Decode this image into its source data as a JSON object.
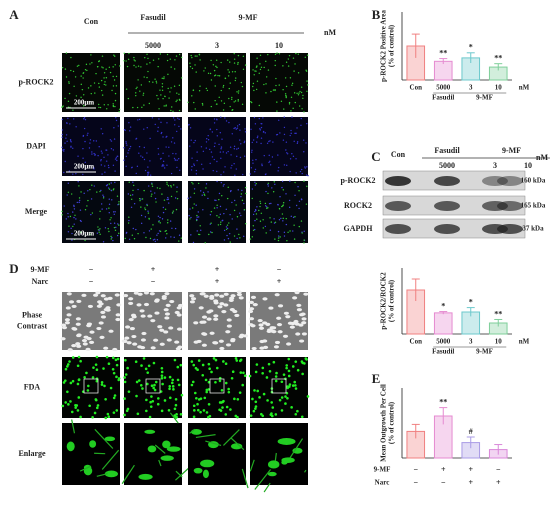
{
  "panel_labels": [
    "A",
    "B",
    "C",
    "D",
    "E"
  ],
  "panel_a": {
    "header": {
      "control": "Con",
      "groups": [
        "Fasudil",
        "9-MF"
      ],
      "doses": [
        "5000",
        "3",
        "10"
      ],
      "unit": "nM"
    },
    "rows": [
      "p-ROCK2",
      "DAPI",
      "Merge"
    ],
    "scale_bar": "200μm"
  },
  "blot": {
    "header": {
      "control": "Con",
      "groups": [
        "Fasudil",
        "9-MF"
      ],
      "doses": [
        "5000",
        "3",
        "10"
      ],
      "unit": "nM"
    },
    "rows": [
      {
        "name": "p-ROCK2",
        "size": "160 kDa"
      },
      {
        "name": "ROCK2",
        "size": "165 kDa"
      },
      {
        "name": "GAPDH",
        "size": "37 kDa"
      }
    ]
  },
  "panel_d": {
    "conditions": [
      {
        "name": "9-MF",
        "values": [
          "−",
          "+",
          "+",
          "−"
        ]
      },
      {
        "name": "Narc",
        "values": [
          "−",
          "−",
          "+",
          "+"
        ]
      }
    ],
    "rows": [
      [
        "Phase",
        "Contrast"
      ],
      [
        "FDA"
      ],
      [
        "Enlarge"
      ]
    ]
  },
  "chart_data": [
    {
      "type": "bar",
      "ylabel": [
        "p-ROCK2 Positive Area",
        "(% of control)"
      ],
      "categories": [
        "Con",
        "5000",
        "3",
        "10"
      ],
      "groups": [
        "Fasudil",
        "9-MF"
      ],
      "unit": "nM",
      "values": [
        100,
        55,
        65,
        38
      ],
      "errors": [
        35,
        8,
        15,
        10
      ],
      "annotations": [
        null,
        "**",
        "*",
        "**"
      ],
      "colors": [
        "#f08080",
        "#e58ad0",
        "#6cc8cc",
        "#7fcf9a"
      ],
      "ylim": [
        0,
        200
      ]
    },
    {
      "type": "bar",
      "ylabel": [
        "p-ROCK2/ROCK2",
        "(% of control)"
      ],
      "categories": [
        "Con",
        "5000",
        "3",
        "10"
      ],
      "groups": [
        "Fasudil",
        "9-MF"
      ],
      "unit": "nM",
      "values": [
        100,
        48,
        50,
        25
      ],
      "errors": [
        25,
        3,
        10,
        8
      ],
      "annotations": [
        null,
        "*",
        "*",
        "**"
      ],
      "colors": [
        "#f08080",
        "#e58ad0",
        "#6cc8cc",
        "#7fcf9a"
      ],
      "ylim": [
        0,
        150
      ]
    },
    {
      "type": "bar",
      "ylabel": [
        "Mean Outgrowth Per Cell",
        "(% of control)"
      ],
      "categories": [
        null,
        null,
        null,
        null
      ],
      "conditions": [
        {
          "name": "9-MF",
          "values": [
            "−",
            "+",
            "+",
            "−"
          ]
        },
        {
          "name": "Narc",
          "values": [
            "−",
            "−",
            "+",
            "+"
          ]
        }
      ],
      "values": [
        95,
        150,
        55,
        30
      ],
      "errors": [
        25,
        30,
        20,
        18
      ],
      "annotations": [
        null,
        "**",
        "#",
        null
      ],
      "colors": [
        "#f08080",
        "#e58ad0",
        "#a99be6",
        "#d987d9"
      ],
      "ylim": [
        0,
        250
      ]
    }
  ]
}
